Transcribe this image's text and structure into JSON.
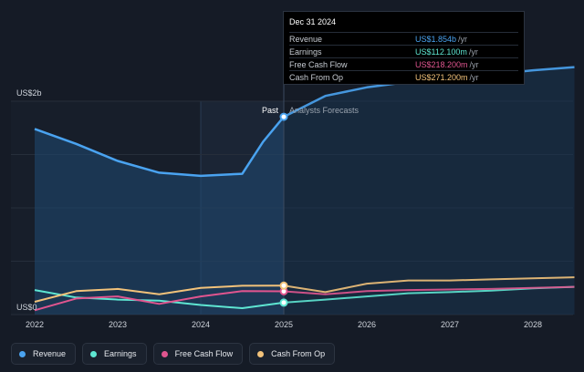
{
  "tooltip": {
    "date": "Dec 31 2024",
    "rows": [
      {
        "label": "Revenue",
        "value": "US$1.854b",
        "unit": "/yr",
        "color": "#4aa3f0"
      },
      {
        "label": "Earnings",
        "value": "US$112.100m",
        "unit": "/yr",
        "color": "#5ee6d2"
      },
      {
        "label": "Free Cash Flow",
        "value": "US$218.200m",
        "unit": "/yr",
        "color": "#e0558f"
      },
      {
        "label": "Cash From Op",
        "value": "US$271.200m",
        "unit": "/yr",
        "color": "#f2c27a"
      }
    ]
  },
  "legend": [
    {
      "label": "Revenue",
      "color": "#4aa3f0"
    },
    {
      "label": "Earnings",
      "color": "#5ee6d2"
    },
    {
      "label": "Free Cash Flow",
      "color": "#e0558f"
    },
    {
      "label": "Cash From Op",
      "color": "#f2c27a"
    }
  ],
  "chart_data": {
    "type": "area",
    "x_ticks": [
      "2022",
      "2023",
      "2024",
      "2025",
      "2026",
      "2027",
      "2028"
    ],
    "y_tick_labels": [
      {
        "value": 2000,
        "label": "US$2b"
      },
      {
        "value": 0,
        "label": "US$0"
      }
    ],
    "y_unit": "US$ millions",
    "ylim": [
      0,
      2000
    ],
    "xlim": [
      2022,
      2028.5
    ],
    "past_label": "Past",
    "forecast_label": "Analysts Forecasts",
    "past_end": 2025,
    "past_highlight_start": 2024,
    "grid": true,
    "series": [
      {
        "name": "Revenue",
        "color": "#4aa3f0",
        "fill": true,
        "x": [
          2022,
          2022.5,
          2023,
          2023.5,
          2024,
          2024.5,
          2024.75,
          2025
        ],
        "y": [
          1740,
          1600,
          1440,
          1330,
          1300,
          1320,
          1620,
          1854
        ],
        "forecast_x": [
          2025,
          2025.5,
          2026,
          2026.5,
          2027,
          2027.5,
          2028,
          2028.5
        ],
        "forecast_y": [
          1854,
          2050,
          2130,
          2180,
          2220,
          2250,
          2290,
          2320
        ]
      },
      {
        "name": "Earnings",
        "color": "#5ee6d2",
        "x": [
          2022,
          2022.5,
          2023,
          2023.5,
          2024,
          2024.5,
          2025
        ],
        "y": [
          230,
          160,
          140,
          130,
          90,
          60,
          112
        ],
        "forecast_x": [
          2025,
          2025.5,
          2026,
          2026.5,
          2027,
          2027.5,
          2028,
          2028.5
        ],
        "forecast_y": [
          112,
          140,
          170,
          200,
          210,
          225,
          245,
          260
        ]
      },
      {
        "name": "Free Cash Flow",
        "color": "#e0558f",
        "x": [
          2022,
          2022.5,
          2023,
          2023.5,
          2024,
          2024.5,
          2025
        ],
        "y": [
          40,
          150,
          170,
          100,
          170,
          220,
          218
        ],
        "forecast_x": [
          2025,
          2025.5,
          2026,
          2026.5,
          2027,
          2027.5,
          2028,
          2028.5
        ],
        "forecast_y": [
          218,
          190,
          220,
          230,
          235,
          240,
          250,
          260
        ]
      },
      {
        "name": "Cash From Op",
        "color": "#f2c27a",
        "x": [
          2022,
          2022.5,
          2023,
          2023.5,
          2024,
          2024.5,
          2025
        ],
        "y": [
          120,
          220,
          240,
          190,
          250,
          270,
          271
        ],
        "forecast_x": [
          2025,
          2025.5,
          2026,
          2026.5,
          2027,
          2027.5,
          2028,
          2028.5
        ],
        "forecast_y": [
          271,
          210,
          290,
          320,
          320,
          330,
          340,
          350
        ]
      }
    ]
  }
}
